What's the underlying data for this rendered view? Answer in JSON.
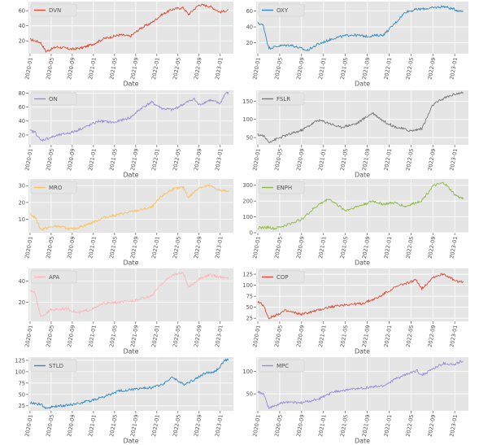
{
  "figure": {
    "style": "ggplot",
    "background": "#ffffff",
    "panel_background": "#e5e5e5",
    "grid_color": "#ffffff",
    "tick_color": "#555555"
  },
  "chart_data": [
    {
      "type": "line",
      "xlabel": "Date",
      "ylabel": "",
      "grid": true,
      "legend_position": "top-left",
      "x_ticks": [
        "2020-01",
        "2020-05",
        "2020-09",
        "2021-01",
        "2021-05",
        "2021-09",
        "2022-01",
        "2022-05",
        "2022-09",
        "2023-01"
      ],
      "y_ticks": [
        20,
        40,
        60
      ],
      "ylim": [
        3,
        72
      ],
      "series": [
        {
          "name": "DVN",
          "color": "#E24A33",
          "x": [
            "2020-01",
            "2020-03",
            "2020-04",
            "2020-06",
            "2020-09",
            "2020-11",
            "2021-01",
            "2021-03",
            "2021-06",
            "2021-08",
            "2021-10",
            "2021-12",
            "2022-02",
            "2022-04",
            "2022-06",
            "2022-07",
            "2022-09",
            "2022-11",
            "2023-01",
            "2023-02"
          ],
          "y": [
            22,
            18,
            6,
            12,
            9,
            11,
            16,
            23,
            28,
            26,
            37,
            44,
            55,
            62,
            64,
            55,
            68,
            66,
            58,
            60
          ]
        }
      ]
    },
    {
      "type": "line",
      "xlabel": "Date",
      "ylabel": "",
      "grid": true,
      "legend_position": "top-left",
      "x_ticks": [
        "2020-01",
        "2020-05",
        "2020-09",
        "2021-01",
        "2021-05",
        "2021-09",
        "2022-01",
        "2022-05",
        "2022-09",
        "2023-01"
      ],
      "y_ticks": [
        20,
        40,
        60
      ],
      "ylim": [
        6,
        72
      ],
      "series": [
        {
          "name": "OXY",
          "color": "#348ABD",
          "x": [
            "2020-01",
            "2020-02",
            "2020-03",
            "2020-05",
            "2020-07",
            "2020-10",
            "2020-12",
            "2021-03",
            "2021-06",
            "2021-09",
            "2021-12",
            "2022-02",
            "2022-04",
            "2022-06",
            "2022-09",
            "2022-11",
            "2023-01",
            "2023-02"
          ],
          "y": [
            45,
            42,
            13,
            16,
            17,
            10,
            18,
            26,
            30,
            28,
            30,
            44,
            59,
            62,
            64,
            66,
            62,
            60
          ]
        }
      ]
    },
    {
      "type": "line",
      "xlabel": "Date",
      "ylabel": "",
      "grid": true,
      "legend_position": "top-left",
      "x_ticks": [
        "2020-01",
        "2020-05",
        "2020-09",
        "2021-01",
        "2021-05",
        "2021-09",
        "2022-01",
        "2022-05",
        "2022-09",
        "2023-01"
      ],
      "y_ticks": [
        20,
        40,
        60,
        80
      ],
      "ylim": [
        6,
        84
      ],
      "series": [
        {
          "name": "ON",
          "color": "#988ED5",
          "x": [
            "2020-01",
            "2020-02",
            "2020-03",
            "2020-06",
            "2020-09",
            "2020-12",
            "2021-02",
            "2021-05",
            "2021-08",
            "2021-10",
            "2021-12",
            "2022-02",
            "2022-04",
            "2022-06",
            "2022-08",
            "2022-09",
            "2022-11",
            "2023-01",
            "2023-02"
          ],
          "y": [
            26,
            24,
            12,
            19,
            24,
            33,
            40,
            38,
            45,
            58,
            67,
            58,
            56,
            64,
            72,
            63,
            70,
            65,
            80
          ]
        }
      ]
    },
    {
      "type": "line",
      "xlabel": "Date",
      "ylabel": "",
      "grid": true,
      "legend_position": "top-left",
      "x_ticks": [
        "2020-01",
        "2020-05",
        "2020-09",
        "2021-01",
        "2021-05",
        "2021-09",
        "2022-01",
        "2022-05",
        "2022-09",
        "2023-01"
      ],
      "y_ticks": [
        50,
        100,
        150
      ],
      "ylim": [
        30,
        180
      ],
      "series": [
        {
          "name": "FSLR",
          "color": "#777777",
          "x": [
            "2020-01",
            "2020-02",
            "2020-03",
            "2020-06",
            "2020-09",
            "2020-12",
            "2021-02",
            "2021-04",
            "2021-07",
            "2021-10",
            "2021-12",
            "2022-02",
            "2022-05",
            "2022-07",
            "2022-09",
            "2022-11",
            "2023-01",
            "2023-02"
          ],
          "y": [
            58,
            55,
            38,
            55,
            70,
            98,
            90,
            78,
            88,
            118,
            95,
            80,
            68,
            75,
            140,
            158,
            170,
            172
          ]
        }
      ]
    },
    {
      "type": "line",
      "xlabel": "Date",
      "ylabel": "",
      "grid": true,
      "legend_position": "top-left",
      "x_ticks": [
        "2020-01",
        "2020-05",
        "2020-09",
        "2021-01",
        "2021-05",
        "2021-09",
        "2022-01",
        "2022-05",
        "2022-09",
        "2023-01"
      ],
      "y_ticks": [
        10,
        20,
        30
      ],
      "ylim": [
        2,
        34
      ],
      "series": [
        {
          "name": "MRO",
          "color": "#FBC15E",
          "x": [
            "2020-01",
            "2020-02",
            "2020-03",
            "2020-06",
            "2020-09",
            "2020-12",
            "2021-03",
            "2021-06",
            "2021-09",
            "2021-12",
            "2022-02",
            "2022-04",
            "2022-06",
            "2022-07",
            "2022-09",
            "2022-11",
            "2023-01",
            "2023-02"
          ],
          "y": [
            13,
            11,
            4,
            6,
            4,
            7,
            11,
            13,
            15,
            17,
            24,
            28,
            29,
            23,
            29,
            30,
            27,
            27
          ]
        }
      ]
    },
    {
      "type": "line",
      "xlabel": "Date",
      "ylabel": "",
      "grid": true,
      "legend_position": "top-left",
      "x_ticks": [
        "2020-01",
        "2020-05",
        "2020-09",
        "2021-01",
        "2021-05",
        "2021-09",
        "2022-01",
        "2022-05",
        "2022-09",
        "2023-01"
      ],
      "y_ticks": [
        0,
        100,
        200,
        300
      ],
      "ylim": [
        0,
        340
      ],
      "series": [
        {
          "name": "ENPH",
          "color": "#8EBA42",
          "x": [
            "2020-01",
            "2020-03",
            "2020-04",
            "2020-06",
            "2020-09",
            "2020-12",
            "2021-02",
            "2021-05",
            "2021-08",
            "2021-10",
            "2021-12",
            "2022-02",
            "2022-04",
            "2022-07",
            "2022-09",
            "2022-11",
            "2022-12",
            "2023-01",
            "2023-02"
          ],
          "y": [
            30,
            35,
            25,
            45,
            85,
            175,
            215,
            140,
            175,
            200,
            180,
            190,
            165,
            205,
            295,
            315,
            280,
            240,
            220
          ]
        }
      ]
    },
    {
      "type": "line",
      "xlabel": "Date",
      "ylabel": "",
      "grid": true,
      "legend_position": "top-left",
      "x_ticks": [
        "2020-01",
        "2020-05",
        "2020-09",
        "2021-01",
        "2021-05",
        "2021-09",
        "2022-01",
        "2022-05",
        "2022-09",
        "2023-01"
      ],
      "y_ticks": [
        20,
        40
      ],
      "ylim": [
        2,
        52
      ],
      "series": [
        {
          "name": "APA",
          "color": "#FFB5B8",
          "x": [
            "2020-01",
            "2020-02",
            "2020-03",
            "2020-05",
            "2020-08",
            "2020-10",
            "2021-01",
            "2021-03",
            "2021-06",
            "2021-09",
            "2021-12",
            "2022-02",
            "2022-04",
            "2022-06",
            "2022-07",
            "2022-09",
            "2022-11",
            "2023-01",
            "2023-02"
          ],
          "y": [
            32,
            28,
            6,
            13,
            14,
            10,
            14,
            19,
            20,
            22,
            26,
            38,
            46,
            48,
            34,
            42,
            46,
            44,
            43
          ]
        }
      ]
    },
    {
      "type": "line",
      "xlabel": "Date",
      "ylabel": "",
      "grid": true,
      "legend_position": "top-left",
      "x_ticks": [
        "2020-01",
        "2020-05",
        "2020-09",
        "2021-01",
        "2021-05",
        "2021-09",
        "2022-01",
        "2022-05",
        "2022-09",
        "2023-01"
      ],
      "y_ticks": [
        25,
        50,
        75,
        100,
        125
      ],
      "ylim": [
        18,
        138
      ],
      "series": [
        {
          "name": "COP",
          "color": "#E24A33",
          "x": [
            "2020-01",
            "2020-02",
            "2020-03",
            "2020-06",
            "2020-09",
            "2020-11",
            "2021-02",
            "2021-05",
            "2021-08",
            "2021-11",
            "2022-01",
            "2022-03",
            "2022-06",
            "2022-07",
            "2022-09",
            "2022-11",
            "2023-01",
            "2023-02"
          ],
          "y": [
            62,
            55,
            25,
            42,
            34,
            40,
            50,
            56,
            58,
            72,
            88,
            100,
            112,
            92,
            118,
            126,
            110,
            108
          ]
        }
      ]
    },
    {
      "type": "line",
      "xlabel": "Date",
      "ylabel": "",
      "grid": true,
      "legend_position": "top-left",
      "x_ticks": [
        "2020-01",
        "2020-05",
        "2020-09",
        "2021-01",
        "2021-05",
        "2021-09",
        "2022-01",
        "2022-05",
        "2022-09",
        "2023-01"
      ],
      "y_ticks": [
        25,
        50,
        75,
        100,
        125
      ],
      "ylim": [
        14,
        132
      ],
      "series": [
        {
          "name": "STLD",
          "color": "#348ABD",
          "x": [
            "2020-01",
            "2020-03",
            "2020-04",
            "2020-06",
            "2020-09",
            "2020-12",
            "2021-03",
            "2021-06",
            "2021-09",
            "2021-12",
            "2022-02",
            "2022-04",
            "2022-06",
            "2022-08",
            "2022-10",
            "2022-12",
            "2023-01",
            "2023-02"
          ],
          "y": [
            32,
            28,
            20,
            24,
            28,
            35,
            45,
            58,
            62,
            65,
            72,
            88,
            72,
            82,
            96,
            100,
            112,
            126
          ]
        }
      ]
    },
    {
      "type": "line",
      "xlabel": "Date",
      "ylabel": "",
      "grid": true,
      "legend_position": "top-left",
      "x_ticks": [
        "2020-01",
        "2020-05",
        "2020-09",
        "2021-01",
        "2021-05",
        "2021-09",
        "2022-01",
        "2022-05",
        "2022-09",
        "2023-01"
      ],
      "y_ticks": [
        50,
        100
      ],
      "ylim": [
        12,
        132
      ],
      "series": [
        {
          "name": "MPC",
          "color": "#988ED5",
          "x": [
            "2020-01",
            "2020-02",
            "2020-03",
            "2020-06",
            "2020-09",
            "2020-12",
            "2021-03",
            "2021-06",
            "2021-09",
            "2021-12",
            "2022-02",
            "2022-04",
            "2022-06",
            "2022-07",
            "2022-09",
            "2022-11",
            "2023-01",
            "2023-02"
          ],
          "y": [
            55,
            50,
            18,
            32,
            30,
            38,
            55,
            60,
            64,
            68,
            82,
            92,
            102,
            92,
            106,
            118,
            115,
            122
          ]
        }
      ]
    }
  ]
}
